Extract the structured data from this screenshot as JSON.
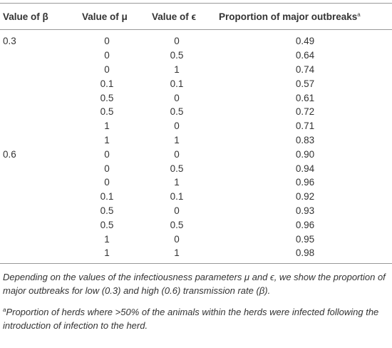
{
  "table": {
    "columns": [
      "Value of β",
      "Value of μ",
      "Value of ϵ",
      "Proportion of major outbreaks"
    ],
    "footnote_marker": "a",
    "groups": [
      {
        "beta": "0.3",
        "rows": [
          [
            "0",
            "0",
            "0.49"
          ],
          [
            "0",
            "0.5",
            "0.64"
          ],
          [
            "0",
            "1",
            "0.74"
          ],
          [
            "0.1",
            "0.1",
            "0.57"
          ],
          [
            "0.5",
            "0",
            "0.61"
          ],
          [
            "0.5",
            "0.5",
            "0.72"
          ],
          [
            "1",
            "0",
            "0.71"
          ],
          [
            "1",
            "1",
            "0.83"
          ]
        ]
      },
      {
        "beta": "0.6",
        "rows": [
          [
            "0",
            "0",
            "0.90"
          ],
          [
            "0",
            "0.5",
            "0.94"
          ],
          [
            "0",
            "1",
            "0.96"
          ],
          [
            "0.1",
            "0.1",
            "0.92"
          ],
          [
            "0.5",
            "0",
            "0.93"
          ],
          [
            "0.5",
            "0.5",
            "0.96"
          ],
          [
            "1",
            "0",
            "0.95"
          ],
          [
            "1",
            "1",
            "0.98"
          ]
        ]
      }
    ]
  },
  "footnotes": {
    "caption": "Depending on the values of the infectiousness parameters μ and ϵ, we show the proportion of major outbreaks for low (0.3) and high (0.6) transmission rate (β).",
    "note": "Proportion of herds where >50% of the animals within the herds were infected following the introduction of infection to the herd."
  }
}
